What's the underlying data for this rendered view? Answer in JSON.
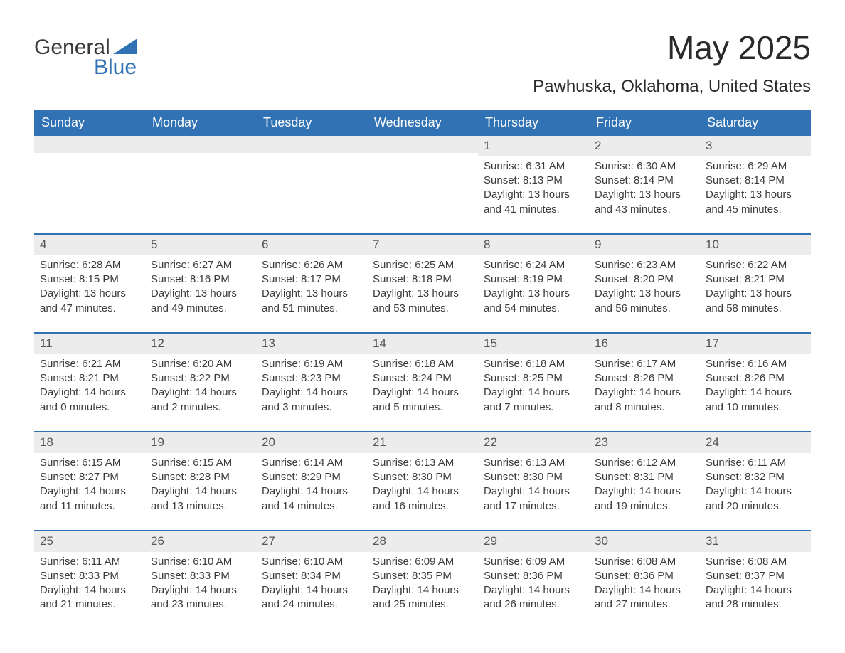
{
  "logo": {
    "word1": "General",
    "word2": "Blue",
    "accent_color": "#3072b3",
    "text_color": "#3b3b3b"
  },
  "title": "May 2025",
  "location": "Pawhuska, Oklahoma, United States",
  "colors": {
    "header_bg": "#3072b3",
    "header_text": "#ffffff",
    "row_border": "#3072b3",
    "daynum_bg": "#ececec",
    "body_text": "#3b3b3b",
    "page_bg": "#ffffff"
  },
  "typography": {
    "title_fontsize": 46,
    "location_fontsize": 24,
    "dayhead_fontsize": 18,
    "daynum_fontsize": 17,
    "cell_fontsize": 15
  },
  "day_names": [
    "Sunday",
    "Monday",
    "Tuesday",
    "Wednesday",
    "Thursday",
    "Friday",
    "Saturday"
  ],
  "weeks": [
    [
      null,
      null,
      null,
      null,
      {
        "n": "1",
        "sunrise": "6:31 AM",
        "sunset": "8:13 PM",
        "daylight": "13 hours and 41 minutes."
      },
      {
        "n": "2",
        "sunrise": "6:30 AM",
        "sunset": "8:14 PM",
        "daylight": "13 hours and 43 minutes."
      },
      {
        "n": "3",
        "sunrise": "6:29 AM",
        "sunset": "8:14 PM",
        "daylight": "13 hours and 45 minutes."
      }
    ],
    [
      {
        "n": "4",
        "sunrise": "6:28 AM",
        "sunset": "8:15 PM",
        "daylight": "13 hours and 47 minutes."
      },
      {
        "n": "5",
        "sunrise": "6:27 AM",
        "sunset": "8:16 PM",
        "daylight": "13 hours and 49 minutes."
      },
      {
        "n": "6",
        "sunrise": "6:26 AM",
        "sunset": "8:17 PM",
        "daylight": "13 hours and 51 minutes."
      },
      {
        "n": "7",
        "sunrise": "6:25 AM",
        "sunset": "8:18 PM",
        "daylight": "13 hours and 53 minutes."
      },
      {
        "n": "8",
        "sunrise": "6:24 AM",
        "sunset": "8:19 PM",
        "daylight": "13 hours and 54 minutes."
      },
      {
        "n": "9",
        "sunrise": "6:23 AM",
        "sunset": "8:20 PM",
        "daylight": "13 hours and 56 minutes."
      },
      {
        "n": "10",
        "sunrise": "6:22 AM",
        "sunset": "8:21 PM",
        "daylight": "13 hours and 58 minutes."
      }
    ],
    [
      {
        "n": "11",
        "sunrise": "6:21 AM",
        "sunset": "8:21 PM",
        "daylight": "14 hours and 0 minutes."
      },
      {
        "n": "12",
        "sunrise": "6:20 AM",
        "sunset": "8:22 PM",
        "daylight": "14 hours and 2 minutes."
      },
      {
        "n": "13",
        "sunrise": "6:19 AM",
        "sunset": "8:23 PM",
        "daylight": "14 hours and 3 minutes."
      },
      {
        "n": "14",
        "sunrise": "6:18 AM",
        "sunset": "8:24 PM",
        "daylight": "14 hours and 5 minutes."
      },
      {
        "n": "15",
        "sunrise": "6:18 AM",
        "sunset": "8:25 PM",
        "daylight": "14 hours and 7 minutes."
      },
      {
        "n": "16",
        "sunrise": "6:17 AM",
        "sunset": "8:26 PM",
        "daylight": "14 hours and 8 minutes."
      },
      {
        "n": "17",
        "sunrise": "6:16 AM",
        "sunset": "8:26 PM",
        "daylight": "14 hours and 10 minutes."
      }
    ],
    [
      {
        "n": "18",
        "sunrise": "6:15 AM",
        "sunset": "8:27 PM",
        "daylight": "14 hours and 11 minutes."
      },
      {
        "n": "19",
        "sunrise": "6:15 AM",
        "sunset": "8:28 PM",
        "daylight": "14 hours and 13 minutes."
      },
      {
        "n": "20",
        "sunrise": "6:14 AM",
        "sunset": "8:29 PM",
        "daylight": "14 hours and 14 minutes."
      },
      {
        "n": "21",
        "sunrise": "6:13 AM",
        "sunset": "8:30 PM",
        "daylight": "14 hours and 16 minutes."
      },
      {
        "n": "22",
        "sunrise": "6:13 AM",
        "sunset": "8:30 PM",
        "daylight": "14 hours and 17 minutes."
      },
      {
        "n": "23",
        "sunrise": "6:12 AM",
        "sunset": "8:31 PM",
        "daylight": "14 hours and 19 minutes."
      },
      {
        "n": "24",
        "sunrise": "6:11 AM",
        "sunset": "8:32 PM",
        "daylight": "14 hours and 20 minutes."
      }
    ],
    [
      {
        "n": "25",
        "sunrise": "6:11 AM",
        "sunset": "8:33 PM",
        "daylight": "14 hours and 21 minutes."
      },
      {
        "n": "26",
        "sunrise": "6:10 AM",
        "sunset": "8:33 PM",
        "daylight": "14 hours and 23 minutes."
      },
      {
        "n": "27",
        "sunrise": "6:10 AM",
        "sunset": "8:34 PM",
        "daylight": "14 hours and 24 minutes."
      },
      {
        "n": "28",
        "sunrise": "6:09 AM",
        "sunset": "8:35 PM",
        "daylight": "14 hours and 25 minutes."
      },
      {
        "n": "29",
        "sunrise": "6:09 AM",
        "sunset": "8:36 PM",
        "daylight": "14 hours and 26 minutes."
      },
      {
        "n": "30",
        "sunrise": "6:08 AM",
        "sunset": "8:36 PM",
        "daylight": "14 hours and 27 minutes."
      },
      {
        "n": "31",
        "sunrise": "6:08 AM",
        "sunset": "8:37 PM",
        "daylight": "14 hours and 28 minutes."
      }
    ]
  ],
  "labels": {
    "sunrise_prefix": "Sunrise: ",
    "sunset_prefix": "Sunset: ",
    "daylight_prefix": "Daylight: "
  }
}
